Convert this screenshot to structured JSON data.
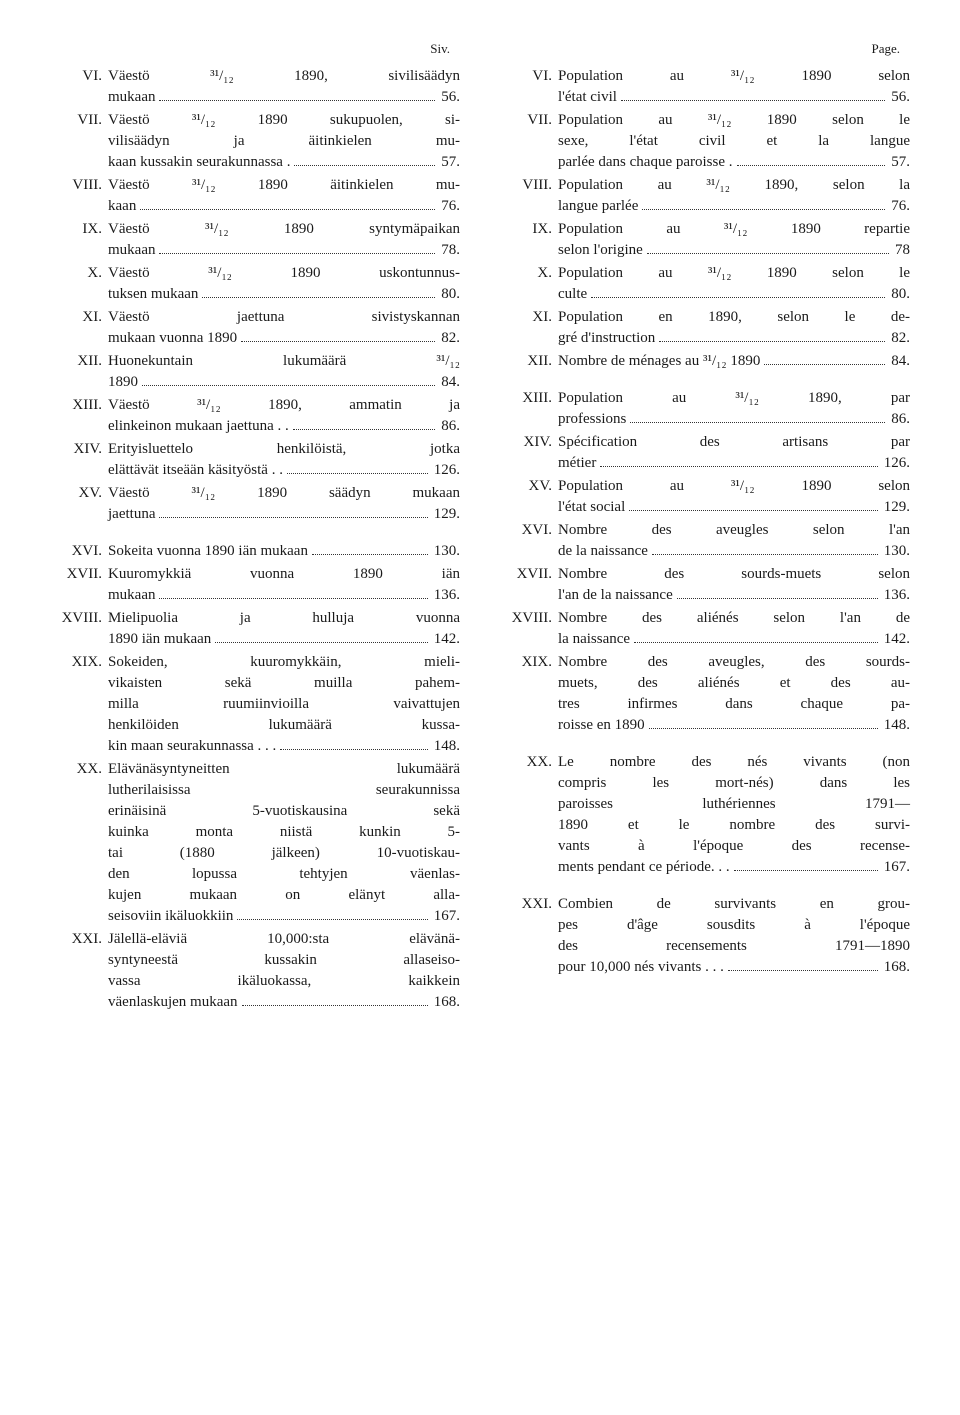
{
  "left": {
    "header": "Siv.",
    "entries": [
      {
        "roman": "VI.",
        "lines": [
          "Väestö ³¹/₁₂ 1890, sivilisäädyn"
        ],
        "last": "mukaan",
        "page": "56."
      },
      {
        "roman": "VII.",
        "lines": [
          "Väestö ³¹/₁₂ 1890 sukupuolen, si-",
          "vilisäädyn ja äitinkielen mu-"
        ],
        "last": "kaan kussakin seurakunnassa .",
        "page": "57."
      },
      {
        "roman": "VIII.",
        "lines": [
          "Väestö ³¹/₁₂ 1890 äitinkielen mu-"
        ],
        "last": "kaan",
        "page": "76."
      },
      {
        "roman": "IX.",
        "lines": [
          "Väestö ³¹/₁₂ 1890 syntymäpaikan"
        ],
        "last": "mukaan",
        "page": "78."
      },
      {
        "roman": "X.",
        "lines": [
          "Väestö ³¹/₁₂ 1890 uskontunnus-"
        ],
        "last": "tuksen mukaan",
        "page": "80."
      },
      {
        "roman": "XI.",
        "lines": [
          "Väestö jaettuna sivistyskannan"
        ],
        "last": "mukaan vuonna 1890",
        "page": "82."
      },
      {
        "roman": "XII.",
        "lines": [
          "Huonekuntain lukumäärä ³¹/₁₂"
        ],
        "last": "1890",
        "page": "84."
      },
      {
        "roman": "XIII.",
        "lines": [
          "Väestö ³¹/₁₂ 1890, ammatin ja"
        ],
        "last": "elinkeinon mukaan jaettuna . .",
        "page": "86."
      },
      {
        "roman": "XIV.",
        "lines": [
          "Erityisluettelo henkilöistä, jotka"
        ],
        "last": "elättävät itseään käsityöstä . .",
        "page": "126."
      },
      {
        "roman": "XV.",
        "lines": [
          "Väestö ³¹/₁₂ 1890 säädyn mukaan"
        ],
        "last": "jaettuna",
        "page": "129."
      },
      {
        "gap": true
      },
      {
        "roman": "XVI.",
        "lines": [],
        "last": "Sokeita vuonna 1890 iän mukaan",
        "page": "130."
      },
      {
        "roman": "XVII.",
        "lines": [
          "Kuuromykkiä vuonna 1890 iän"
        ],
        "last": "mukaan",
        "page": "136."
      },
      {
        "roman": "XVIII.",
        "lines": [
          "Mielipuolia ja hulluja vuonna"
        ],
        "last": "1890 iän mukaan",
        "page": "142."
      },
      {
        "roman": "XIX.",
        "lines": [
          "Sokeiden, kuuromykkäin, mieli-",
          "vikaisten sekä muilla pahem-",
          "milla ruumiinvioilla vaivattujen",
          "henkilöiden lukumäärä kussa-"
        ],
        "last": "kin maan seurakunnassa . . .",
        "page": "148."
      },
      {
        "roman": "XX.",
        "lines": [
          "Elävänäsyntyneitten lukumäärä",
          "lutherilaisissa seurakunnissa",
          "erinäisinä 5-vuotiskausina sekä",
          "kuinka monta niistä kunkin 5-",
          "tai (1880 jälkeen) 10-vuotiskau-",
          "den lopussa tehtyjen väenlas-",
          "kujen mukaan on elänyt alla-"
        ],
        "last": "seisoviin ikäluokkiin",
        "page": "167."
      },
      {
        "roman": "XXI.",
        "lines": [
          "Jälellä-eläviä 10,000:sta elävänä-",
          "syntyneestä kussakin allaseiso-",
          "vassa ikäluokassa, kaikkein"
        ],
        "last": "väenlaskujen mukaan",
        "page": "168."
      }
    ]
  },
  "right": {
    "header": "Page.",
    "entries": [
      {
        "roman": "VI.",
        "lines": [
          "Population au ³¹/₁₂ 1890 selon"
        ],
        "last": "l'état civil",
        "page": "56."
      },
      {
        "roman": "VII.",
        "lines": [
          "Population au ³¹/₁₂ 1890 selon le",
          "sexe, l'état civil et la langue"
        ],
        "last": "parlée dans chaque paroisse .",
        "page": "57."
      },
      {
        "roman": "VIII.",
        "lines": [
          "Population au ³¹/₁₂ 1890, selon la"
        ],
        "last": "langue parlée",
        "page": "76."
      },
      {
        "roman": "IX.",
        "lines": [
          "Population au ³¹/₁₂ 1890 repartie"
        ],
        "last": "selon l'origine",
        "page": "78"
      },
      {
        "roman": "X.",
        "lines": [
          "Population au ³¹/₁₂ 1890 selon le"
        ],
        "last": "culte",
        "page": "80."
      },
      {
        "roman": "XI.",
        "lines": [
          "Population en 1890, selon le de-"
        ],
        "last": "gré d'instruction",
        "page": "82."
      },
      {
        "roman": "XII.",
        "lines": [],
        "last": "Nombre de ménages au ³¹/₁₂ 1890",
        "page": "84."
      },
      {
        "gap": true
      },
      {
        "roman": "XIII.",
        "lines": [
          "Population au ³¹/₁₂ 1890, par"
        ],
        "last": "professions",
        "page": "86."
      },
      {
        "roman": "XIV.",
        "lines": [
          "Spécification des artisans par"
        ],
        "last": "métier",
        "page": "126."
      },
      {
        "roman": "XV.",
        "lines": [
          "Population au ³¹/₁₂ 1890 selon"
        ],
        "last": "l'état social",
        "page": "129."
      },
      {
        "roman": "XVI.",
        "lines": [
          "Nombre des aveugles selon l'an"
        ],
        "last": "de la naissance",
        "page": "130."
      },
      {
        "roman": "XVII.",
        "lines": [
          "Nombre des sourds-muets selon"
        ],
        "last": "l'an de la naissance",
        "page": "136."
      },
      {
        "roman": "XVIII.",
        "lines": [
          "Nombre des aliénés selon l'an de"
        ],
        "last": "la naissance",
        "page": "142."
      },
      {
        "roman": "XIX.",
        "lines": [
          "Nombre des aveugles, des sourds-",
          "muets, des aliénés et des au-",
          "tres infirmes dans chaque pa-"
        ],
        "last": "roisse en 1890",
        "page": "148."
      },
      {
        "gap": true
      },
      {
        "roman": "XX.",
        "lines": [
          "Le nombre des nés vivants (non",
          "compris les mort-nés) dans les",
          "paroisses luthériennes 1791—",
          "1890 et le nombre des survi-",
          "vants à l'époque des recense-"
        ],
        "last": "ments pendant ce période. . .",
        "page": "167."
      },
      {
        "gap": true
      },
      {
        "roman": "XXI.",
        "lines": [
          "Combien de survivants en grou-",
          "pes d'âge sousdits à l'époque",
          "des recensements 1791—1890"
        ],
        "last": "pour 10,000 nés vivants . . .",
        "page": "168."
      }
    ]
  }
}
